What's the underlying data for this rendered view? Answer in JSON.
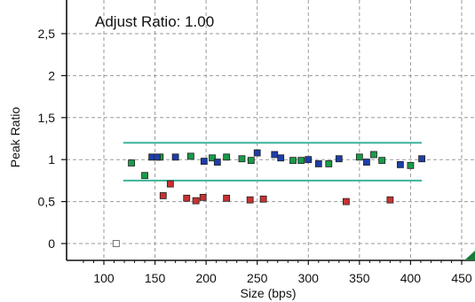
{
  "chart_data": {
    "type": "scatter",
    "annotation": "Adjust Ratio: 1.00",
    "xlabel": "Size (bps)",
    "ylabel": "Peak Ratio",
    "xlim": [
      70,
      455
    ],
    "ylim": [
      -0.1,
      2.8
    ],
    "x_ticks": [
      100,
      150,
      200,
      250,
      300,
      350,
      400,
      450
    ],
    "x_tick_labels": [
      "100",
      "150",
      "200",
      "250",
      "300",
      "350",
      "400",
      "450"
    ],
    "y_ticks": [
      0,
      0.5,
      1,
      1.5,
      2,
      2.5
    ],
    "y_tick_labels": [
      "0",
      "0,5",
      "1",
      "1,5",
      "2",
      "2,5"
    ],
    "grid": true,
    "grid_style": "dashed",
    "colors": {
      "green": "#1a9a4a",
      "blue": "#1e3ea8",
      "red": "#c83232",
      "white": "#ffffff",
      "threshold": "#3bb39a",
      "grid": "#9a9a9a",
      "axis": "#111111"
    },
    "thresholds": [
      {
        "y": 1.2,
        "x_start": 119,
        "x_end": 411
      },
      {
        "y": 0.75,
        "x_start": 119,
        "x_end": 411
      }
    ],
    "series": [
      {
        "color_key": "green",
        "points": [
          [
            127,
            0.96
          ],
          [
            140,
            0.81
          ],
          [
            155,
            1.03
          ],
          [
            185,
            1.04
          ],
          [
            206,
            1.02
          ],
          [
            220,
            1.03
          ],
          [
            235,
            1.01
          ],
          [
            244,
            0.99
          ],
          [
            285,
            0.99
          ],
          [
            293,
            0.99
          ],
          [
            320,
            0.95
          ],
          [
            350,
            1.03
          ],
          [
            364,
            1.06
          ],
          [
            372,
            0.99
          ],
          [
            400,
            0.93
          ]
        ]
      },
      {
        "color_key": "blue",
        "points": [
          [
            147,
            1.03
          ],
          [
            152,
            1.03
          ],
          [
            170,
            1.03
          ],
          [
            198,
            0.98
          ],
          [
            211,
            0.97
          ],
          [
            250,
            1.08
          ],
          [
            267,
            1.06
          ],
          [
            273,
            1.02
          ],
          [
            300,
            1.0
          ],
          [
            310,
            0.95
          ],
          [
            330,
            1.01
          ],
          [
            357,
            0.97
          ],
          [
            390,
            0.94
          ],
          [
            411,
            1.01
          ]
        ]
      },
      {
        "color_key": "red",
        "points": [
          [
            158,
            0.57
          ],
          [
            165,
            0.71
          ],
          [
            181,
            0.54
          ],
          [
            190,
            0.51
          ],
          [
            197,
            0.55
          ],
          [
            220,
            0.54
          ],
          [
            243,
            0.52
          ],
          [
            256,
            0.53
          ],
          [
            337,
            0.5
          ],
          [
            380,
            0.52
          ]
        ]
      },
      {
        "color_key": "white",
        "points": [
          [
            112,
            0.0
          ]
        ]
      }
    ]
  }
}
